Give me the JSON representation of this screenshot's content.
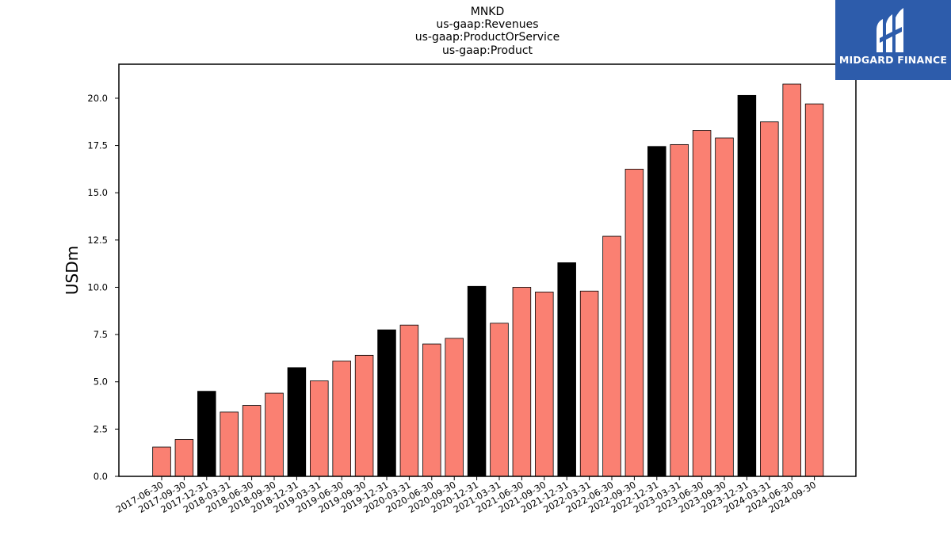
{
  "chart_data": {
    "type": "bar",
    "title_lines": [
      "MNKD",
      "us-gaap:Revenues",
      "us-gaap:ProductOrService",
      "us-gaap:Product"
    ],
    "xlabel": "",
    "ylabel": "USDm",
    "ylim": [
      0,
      21.8
    ],
    "yticks": [
      0.0,
      2.5,
      5.0,
      7.5,
      10.0,
      12.5,
      15.0,
      17.5,
      20.0
    ],
    "grid": false,
    "categories": [
      "2017-06-30",
      "2017-09-30",
      "2017-12-31",
      "2018-03-31",
      "2018-06-30",
      "2018-09-30",
      "2018-12-31",
      "2019-03-31",
      "2019-06-30",
      "2019-09-30",
      "2019-12-31",
      "2020-03-31",
      "2020-06-30",
      "2020-09-30",
      "2020-12-31",
      "2021-03-31",
      "2021-06-30",
      "2021-09-30",
      "2021-12-31",
      "2022-03-31",
      "2022-06-30",
      "2022-09-30",
      "2022-12-31",
      "2023-03-31",
      "2023-06-30",
      "2023-09-30",
      "2023-12-31",
      "2024-03-31",
      "2024-06-30",
      "2024-09-30"
    ],
    "values": [
      1.55,
      1.95,
      4.5,
      3.4,
      3.75,
      4.4,
      5.75,
      5.05,
      6.1,
      6.4,
      7.75,
      8.0,
      7.0,
      7.3,
      10.05,
      8.1,
      10.0,
      9.75,
      11.3,
      9.8,
      12.7,
      16.25,
      17.45,
      17.55,
      18.3,
      17.9,
      20.15,
      18.75,
      20.75,
      19.7
    ],
    "colors": {
      "quarter": "#fa8072",
      "year_end": "#000000",
      "edge": "#000000"
    },
    "year_end_flags": [
      false,
      false,
      true,
      false,
      false,
      false,
      true,
      false,
      false,
      false,
      true,
      false,
      false,
      false,
      true,
      false,
      false,
      false,
      true,
      false,
      false,
      false,
      true,
      false,
      false,
      false,
      true,
      false,
      false,
      false
    ]
  },
  "logo": {
    "text": "MIDGARD FINANCE",
    "background": "#2d5cab"
  }
}
